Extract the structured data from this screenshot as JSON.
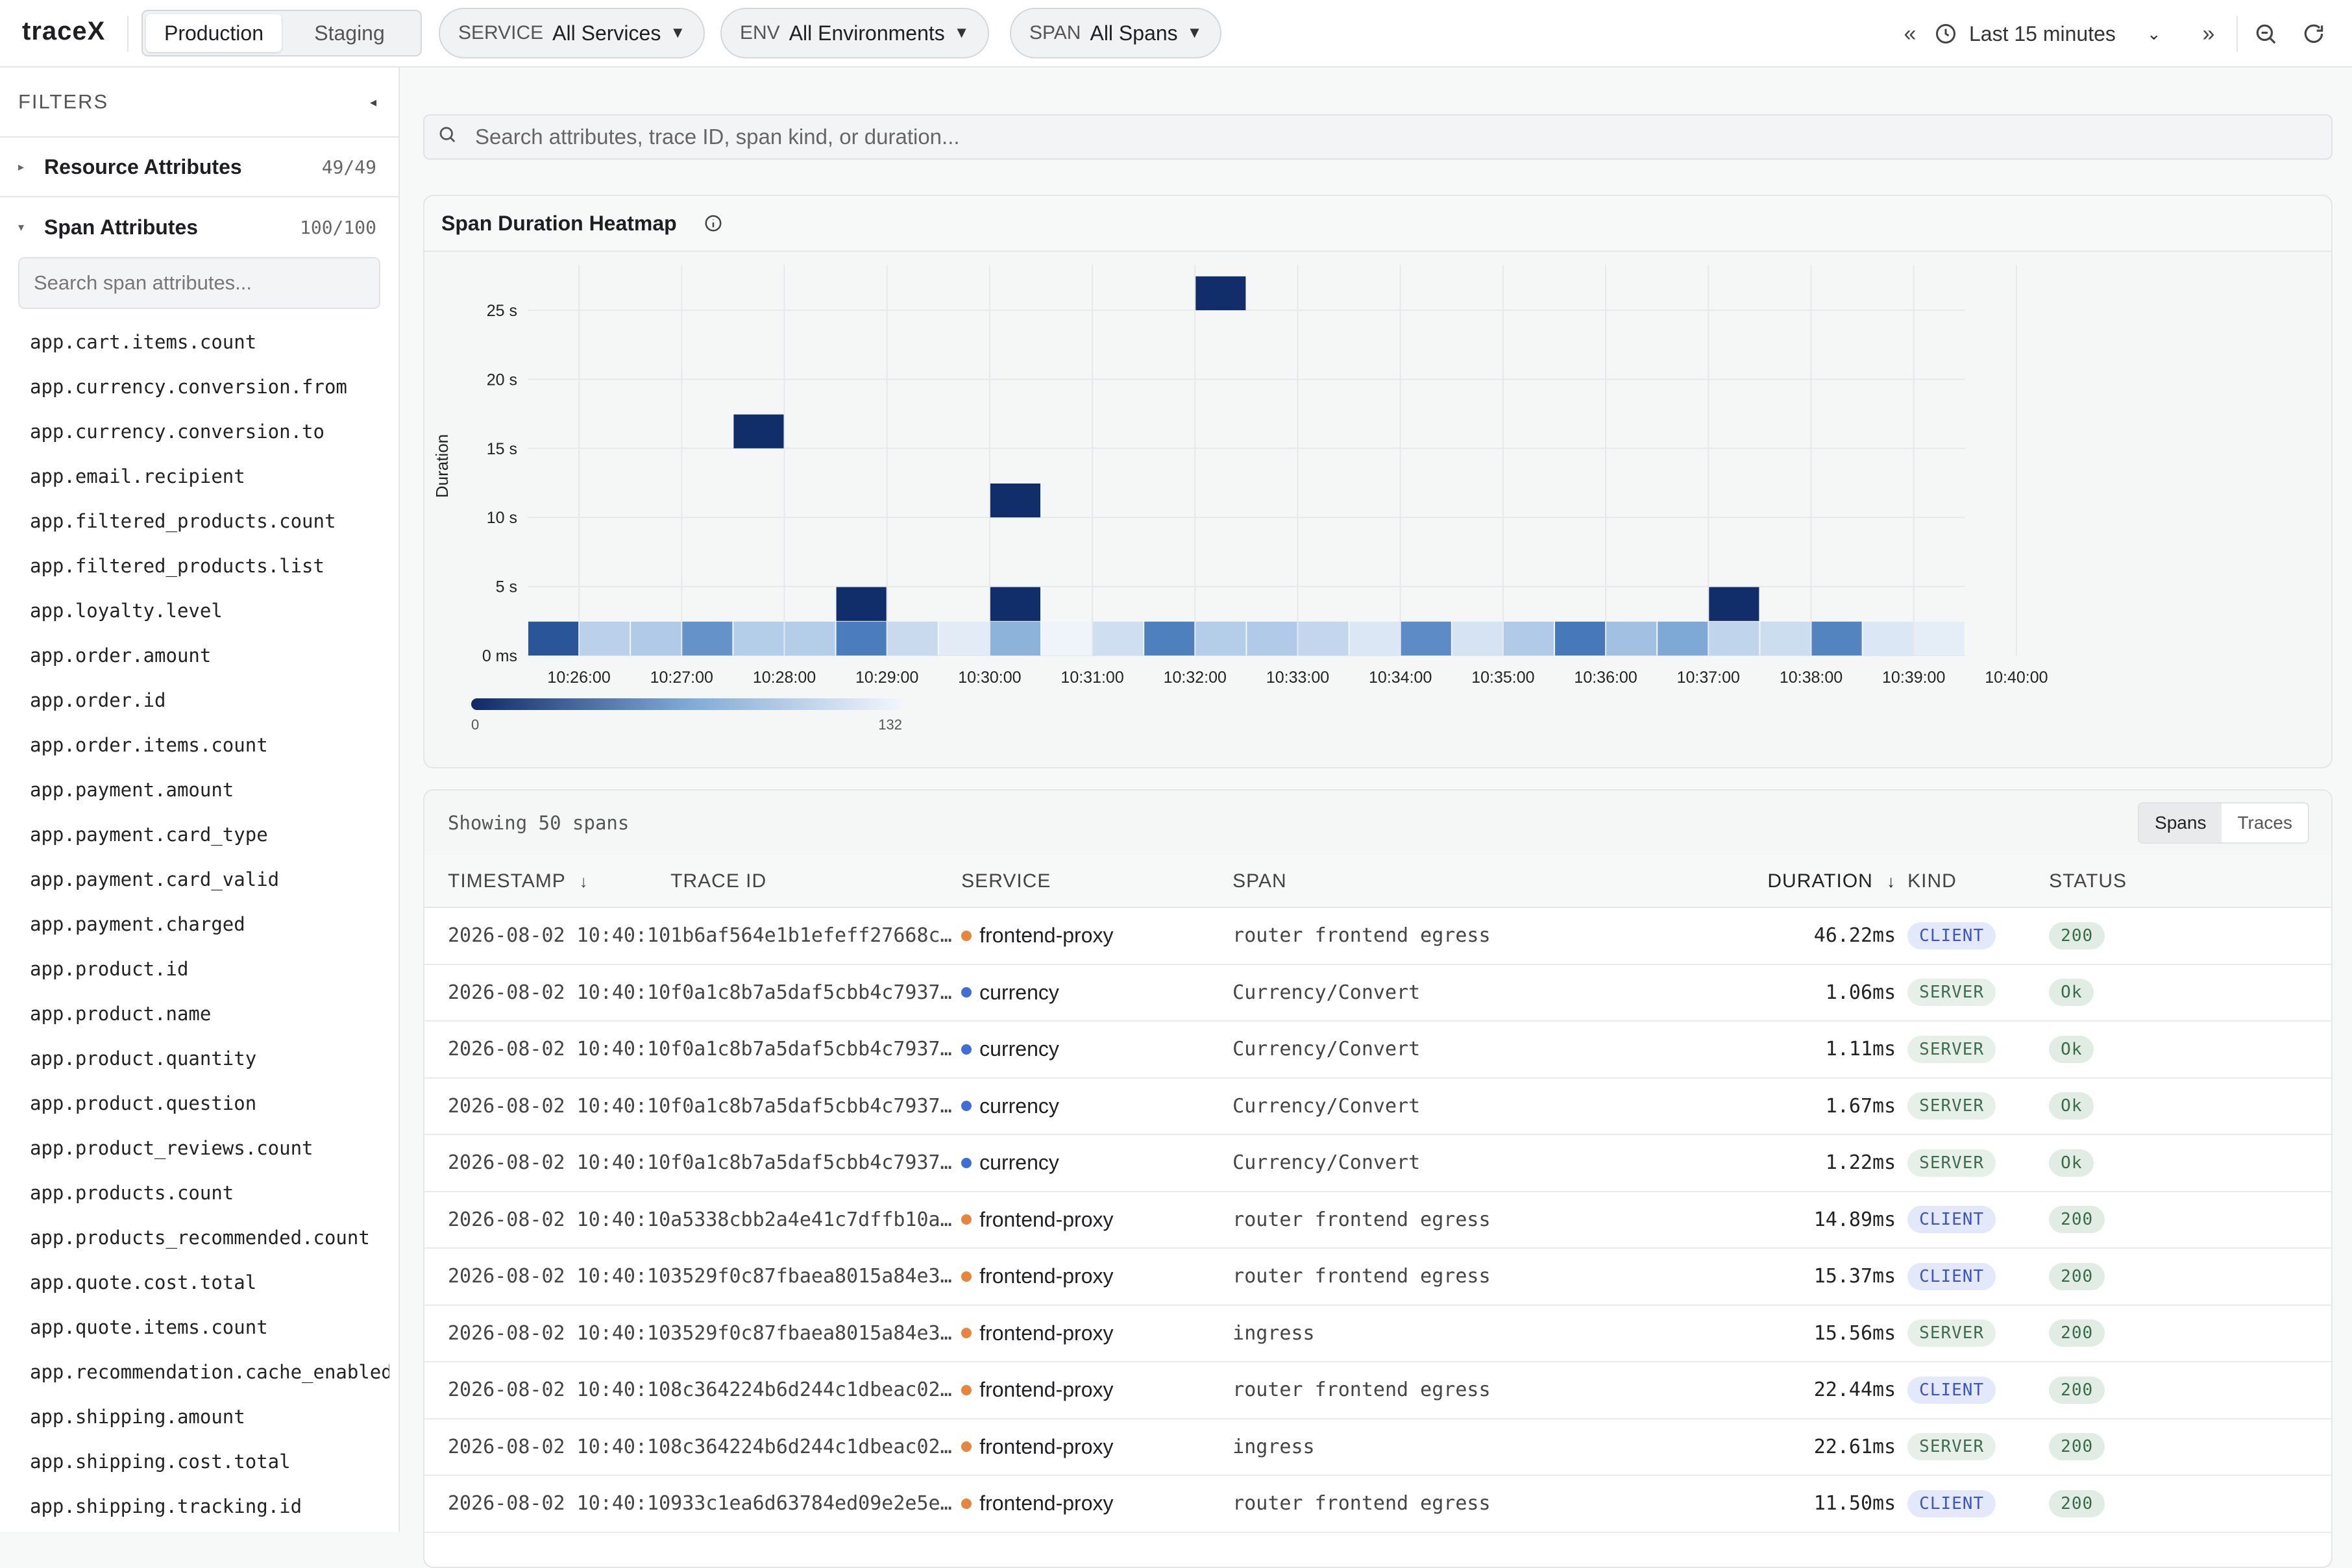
{
  "app": {
    "logo": "traceX"
  },
  "header": {
    "env_options": [
      "Production",
      "Staging"
    ],
    "env_selected": "Production",
    "service": {
      "key": "SERVICE",
      "value": "All Services"
    },
    "env": {
      "key": "ENV",
      "value": "All Environments"
    },
    "span": {
      "key": "SPAN",
      "value": "All Spans"
    },
    "time_range": "Last 15 minutes",
    "icons": {
      "prev": "«",
      "next": "»",
      "clock": "clock-icon",
      "zoom_out": "zoom-out-icon",
      "refresh": "refresh-icon"
    }
  },
  "sidebar": {
    "title": "FILTERS",
    "sections": [
      {
        "label": "Resource Attributes",
        "count": "49/49",
        "expanded": false
      },
      {
        "label": "Span Attributes",
        "count": "100/100",
        "expanded": true
      }
    ],
    "search_placeholder": "Search span attributes...",
    "attributes": [
      "app.cart.items.count",
      "app.currency.conversion.from",
      "app.currency.conversion.to",
      "app.email.recipient",
      "app.filtered_products.count",
      "app.filtered_products.list",
      "app.loyalty.level",
      "app.order.amount",
      "app.order.id",
      "app.order.items.count",
      "app.payment.amount",
      "app.payment.card_type",
      "app.payment.card_valid",
      "app.payment.charged",
      "app.product.id",
      "app.product.name",
      "app.product.quantity",
      "app.product.question",
      "app.product_reviews.count",
      "app.products.count",
      "app.products_recommended.count",
      "app.quote.cost.total",
      "app.quote.items.count",
      "app.recommendation.cache_enabled",
      "app.shipping.amount",
      "app.shipping.cost.total",
      "app.shipping.tracking.id"
    ]
  },
  "search": {
    "placeholder": "Search attributes, trace ID, span kind, or duration..."
  },
  "heatmap": {
    "title": "Span Duration Heatmap",
    "info_icon": "info-icon",
    "ylabel": "Duration",
    "colorbar": {
      "min": "0",
      "max": "132"
    }
  },
  "chart_data": {
    "type": "heatmap",
    "title": "Span Duration Heatmap",
    "xlabel": "",
    "ylabel": "Duration",
    "x_ticks": [
      "10:26:00",
      "10:27:00",
      "10:28:00",
      "10:29:00",
      "10:30:00",
      "10:31:00",
      "10:32:00",
      "10:33:00",
      "10:34:00",
      "10:35:00",
      "10:36:00",
      "10:37:00",
      "10:38:00",
      "10:39:00",
      "10:40:00"
    ],
    "y_ticks": [
      "0 ms",
      "5 s",
      "10 s",
      "15 s",
      "20 s",
      "25 s"
    ],
    "ylim_s": [
      0,
      27
    ],
    "x_start": "10:25:30",
    "bucket_seconds": 30,
    "y_bucket_seconds": 2.5,
    "color_range": [
      0,
      132
    ],
    "cells": [
      {
        "bucket": 0,
        "y": 0,
        "count": 110
      },
      {
        "bucket": 1,
        "y": 0,
        "count": 35
      },
      {
        "bucket": 2,
        "y": 0,
        "count": 40
      },
      {
        "bucket": 3,
        "y": 0,
        "count": 78
      },
      {
        "bucket": 4,
        "y": 0,
        "count": 38
      },
      {
        "bucket": 5,
        "y": 0,
        "count": 38
      },
      {
        "bucket": 6,
        "y": 0,
        "count": 90
      },
      {
        "bucket": 7,
        "y": 0,
        "count": 26
      },
      {
        "bucket": 8,
        "y": 0,
        "count": 10
      },
      {
        "bucket": 9,
        "y": 0,
        "count": 58
      },
      {
        "bucket": 10,
        "y": 0,
        "count": 2
      },
      {
        "bucket": 11,
        "y": 0,
        "count": 22
      },
      {
        "bucket": 12,
        "y": 0,
        "count": 88
      },
      {
        "bucket": 13,
        "y": 0,
        "count": 38
      },
      {
        "bucket": 14,
        "y": 0,
        "count": 40
      },
      {
        "bucket": 15,
        "y": 0,
        "count": 30
      },
      {
        "bucket": 16,
        "y": 0,
        "count": 14
      },
      {
        "bucket": 17,
        "y": 0,
        "count": 82
      },
      {
        "bucket": 18,
        "y": 0,
        "count": 18
      },
      {
        "bucket": 19,
        "y": 0,
        "count": 40
      },
      {
        "bucket": 20,
        "y": 0,
        "count": 92
      },
      {
        "bucket": 21,
        "y": 0,
        "count": 48
      },
      {
        "bucket": 22,
        "y": 0,
        "count": 66
      },
      {
        "bucket": 23,
        "y": 0,
        "count": 32
      },
      {
        "bucket": 24,
        "y": 0,
        "count": 24
      },
      {
        "bucket": 25,
        "y": 0,
        "count": 86
      },
      {
        "bucket": 26,
        "y": 0,
        "count": 14
      },
      {
        "bucket": 27,
        "y": 0,
        "count": 8
      },
      {
        "bucket": 6,
        "y": 2.5,
        "count": 130
      },
      {
        "bucket": 9,
        "y": 2.5,
        "count": 130
      },
      {
        "bucket": 23,
        "y": 2.5,
        "count": 130
      },
      {
        "bucket": 9,
        "y": 10,
        "count": 130
      },
      {
        "bucket": 4,
        "y": 15,
        "count": 130
      },
      {
        "bucket": 13,
        "y": 25,
        "count": 130
      }
    ]
  },
  "table": {
    "showing": "Showing 50 spans",
    "views": [
      "Spans",
      "Traces"
    ],
    "view_selected": "Spans",
    "columns": {
      "timestamp": "TIMESTAMP",
      "trace_id": "TRACE ID",
      "service": "SERVICE",
      "span": "SPAN",
      "duration": "DURATION",
      "kind": "KIND",
      "status": "STATUS"
    },
    "sort_icon": "↓",
    "rows": [
      {
        "timestamp": "2026-08-02 10:40:10",
        "trace_id": "1b6af564e1b1efeff27668c…",
        "service": "frontend-proxy",
        "service_color": "#e8853d",
        "span": "router frontend egress",
        "duration": "46.22ms",
        "kind": "CLIENT",
        "status": "200"
      },
      {
        "timestamp": "2026-08-02 10:40:10",
        "trace_id": "f0a1c8b7a5daf5cbb4c7937…",
        "service": "currency",
        "service_color": "#3f6fd6",
        "span": "Currency/Convert",
        "duration": "1.06ms",
        "kind": "SERVER",
        "status": "Ok"
      },
      {
        "timestamp": "2026-08-02 10:40:10",
        "trace_id": "f0a1c8b7a5daf5cbb4c7937…",
        "service": "currency",
        "service_color": "#3f6fd6",
        "span": "Currency/Convert",
        "duration": "1.11ms",
        "kind": "SERVER",
        "status": "Ok"
      },
      {
        "timestamp": "2026-08-02 10:40:10",
        "trace_id": "f0a1c8b7a5daf5cbb4c7937…",
        "service": "currency",
        "service_color": "#3f6fd6",
        "span": "Currency/Convert",
        "duration": "1.67ms",
        "kind": "SERVER",
        "status": "Ok"
      },
      {
        "timestamp": "2026-08-02 10:40:10",
        "trace_id": "f0a1c8b7a5daf5cbb4c7937…",
        "service": "currency",
        "service_color": "#3f6fd6",
        "span": "Currency/Convert",
        "duration": "1.22ms",
        "kind": "SERVER",
        "status": "Ok"
      },
      {
        "timestamp": "2026-08-02 10:40:10",
        "trace_id": "a5338cbb2a4e41c7dffb10a…",
        "service": "frontend-proxy",
        "service_color": "#e8853d",
        "span": "router frontend egress",
        "duration": "14.89ms",
        "kind": "CLIENT",
        "status": "200"
      },
      {
        "timestamp": "2026-08-02 10:40:10",
        "trace_id": "3529f0c87fbaea8015a84e3…",
        "service": "frontend-proxy",
        "service_color": "#e8853d",
        "span": "router frontend egress",
        "duration": "15.37ms",
        "kind": "CLIENT",
        "status": "200"
      },
      {
        "timestamp": "2026-08-02 10:40:10",
        "trace_id": "3529f0c87fbaea8015a84e3…",
        "service": "frontend-proxy",
        "service_color": "#e8853d",
        "span": "ingress",
        "duration": "15.56ms",
        "kind": "SERVER",
        "status": "200"
      },
      {
        "timestamp": "2026-08-02 10:40:10",
        "trace_id": "8c364224b6d244c1dbeac02…",
        "service": "frontend-proxy",
        "service_color": "#e8853d",
        "span": "router frontend egress",
        "duration": "22.44ms",
        "kind": "CLIENT",
        "status": "200"
      },
      {
        "timestamp": "2026-08-02 10:40:10",
        "trace_id": "8c364224b6d244c1dbeac02…",
        "service": "frontend-proxy",
        "service_color": "#e8853d",
        "span": "ingress",
        "duration": "22.61ms",
        "kind": "SERVER",
        "status": "200"
      },
      {
        "timestamp": "2026-08-02 10:40:10",
        "trace_id": "933c1ea6d63784ed09e2e5e…",
        "service": "frontend-proxy",
        "service_color": "#e8853d",
        "span": "router frontend egress",
        "duration": "11.50ms",
        "kind": "CLIENT",
        "status": "200"
      }
    ]
  }
}
